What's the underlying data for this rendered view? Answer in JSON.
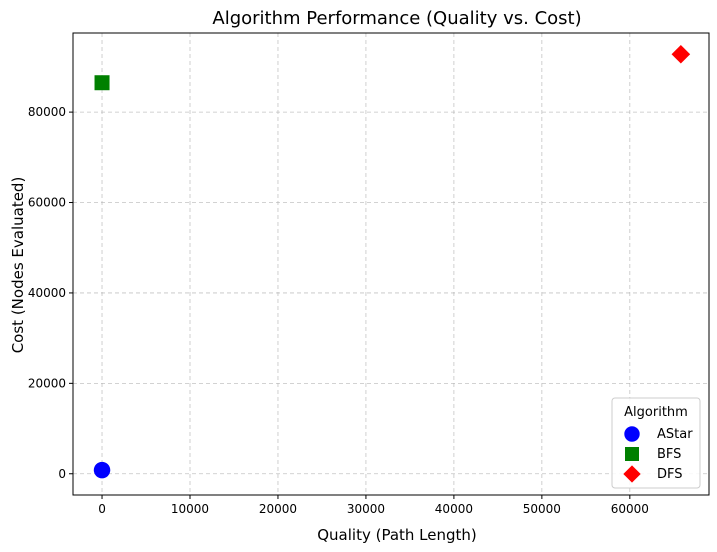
{
  "chart_data": {
    "type": "scatter",
    "title": "Algorithm Performance (Quality vs. Cost)",
    "xlabel": "Quality (Path Length)",
    "ylabel": "Cost (Nodes Evaluated)",
    "xlim": [
      -3300,
      69000
    ],
    "ylim": [
      -4700,
      97500
    ],
    "xticks": [
      0,
      10000,
      20000,
      30000,
      40000,
      50000,
      60000
    ],
    "yticks": [
      0,
      20000,
      40000,
      60000,
      80000
    ],
    "grid": true,
    "legend_title": "Algorithm",
    "legend_position": "lower-right",
    "series": [
      {
        "name": "AStar",
        "marker": "circle",
        "color": "#0000ff",
        "points": [
          [
            0,
            800
          ]
        ]
      },
      {
        "name": "BFS",
        "marker": "square",
        "color": "#008000",
        "points": [
          [
            0,
            86500
          ]
        ]
      },
      {
        "name": "DFS",
        "marker": "diamond",
        "color": "#ff0000",
        "points": [
          [
            65800,
            92800
          ]
        ]
      }
    ]
  }
}
